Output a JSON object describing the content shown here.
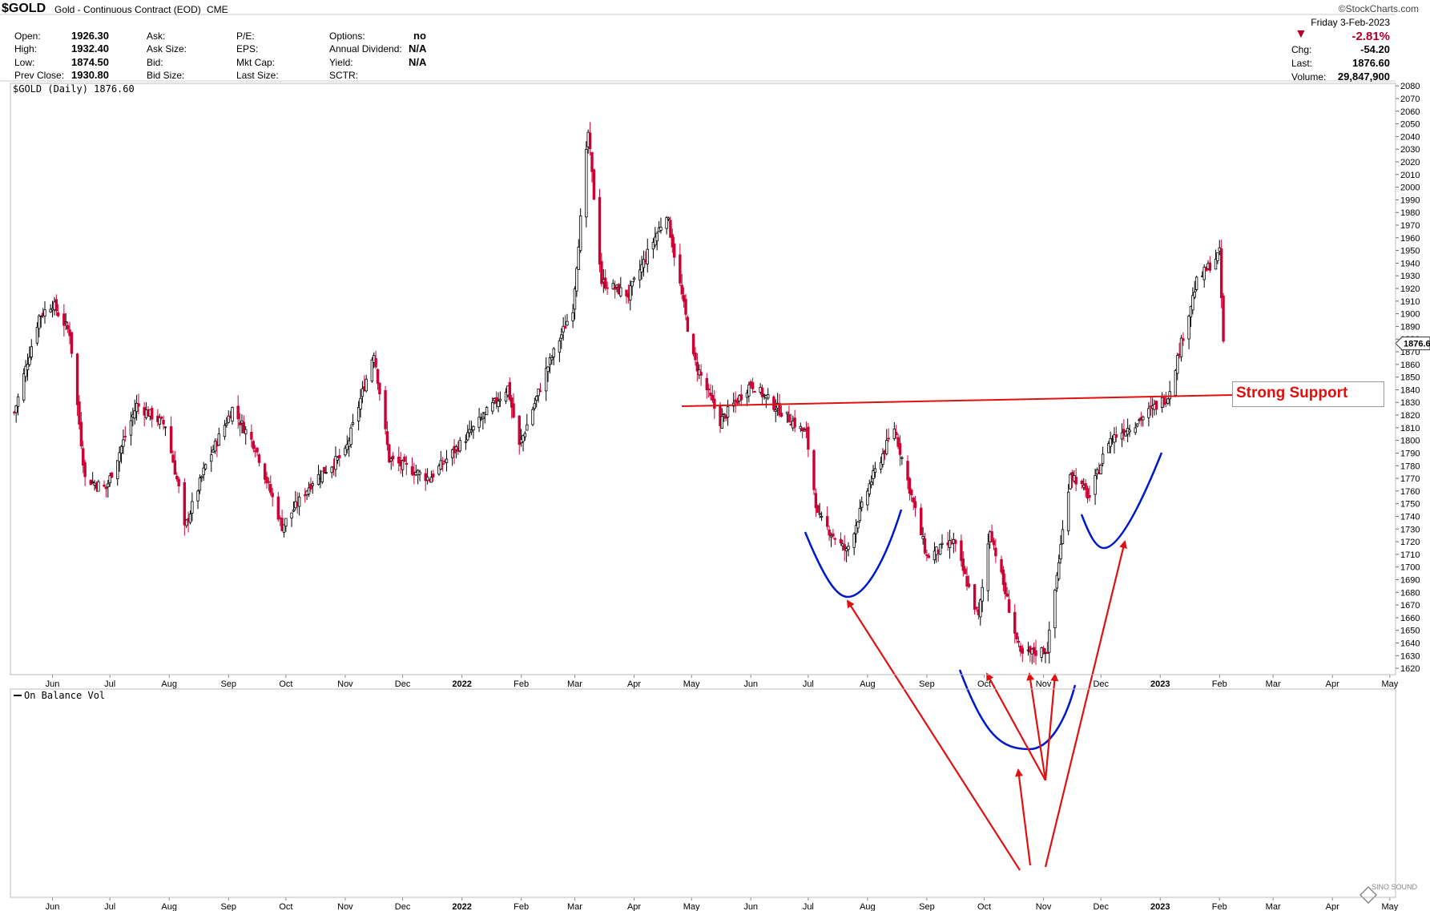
{
  "header": {
    "symbol": "$GOLD",
    "description": "Gold - Continuous Contract (EOD)",
    "exchange": "CME",
    "copyright": "©StockCharts.com",
    "date": "Friday  3-Feb-2023",
    "stats": {
      "open_label": "Open:",
      "open": "1926.30",
      "high_label": "High:",
      "high": "1932.40",
      "low_label": "Low:",
      "low": "1874.50",
      "prev_label": "Prev Close:",
      "prev": "1930.80",
      "ask_label": "Ask:",
      "ask_size_label": "Ask Size:",
      "bid_label": "Bid:",
      "bid_size_label": "Bid Size:",
      "pe_label": "P/E:",
      "eps_label": "EPS:",
      "mktcap_label": "Mkt Cap:",
      "lastsize_label": "Last Size:",
      "options_label": "Options:",
      "options": "no",
      "dividend_label": "Annual Dividend:",
      "dividend": "N/A",
      "yield_label": "Yield:",
      "yield": "N/A",
      "sctr_label": "SCTR:",
      "pct_change": "-2.81%",
      "chg_label": "Chg:",
      "chg": "-54.20",
      "last_label": "Last:",
      "last": "1876.60",
      "volume_label": "Volume:",
      "volume": "29,847,900"
    }
  },
  "colors": {
    "down": "#cc0033",
    "up": "#000000",
    "support_line": "#e01010",
    "bowl": "#0018c8",
    "arrow": "#e01010"
  },
  "chart_data": [
    {
      "type": "candlestick",
      "title": "$GOLD (Daily) 1876.60",
      "ylim": [
        1615,
        2082
      ],
      "y_ticks": [
        1620,
        1630,
        1640,
        1650,
        1660,
        1670,
        1680,
        1690,
        1700,
        1710,
        1720,
        1730,
        1740,
        1750,
        1760,
        1770,
        1780,
        1790,
        1800,
        1810,
        1820,
        1830,
        1840,
        1850,
        1860,
        1870,
        1880,
        1890,
        1900,
        1910,
        1920,
        1930,
        1940,
        1950,
        1960,
        1970,
        1980,
        1990,
        2000,
        2010,
        2020,
        2030,
        2040,
        2050,
        2060,
        2070,
        2080
      ],
      "last_price_label": "1876.60",
      "x_labels": [
        "Jun",
        "Jul",
        "Aug",
        "Sep",
        "Oct",
        "Nov",
        "Dec",
        "2022",
        "Feb",
        "Mar",
        "Apr",
        "May",
        "Jun",
        "Jul",
        "Aug",
        "Sep",
        "Oct",
        "Nov",
        "Dec",
        "2023",
        "Feb",
        "Mar",
        "Apr",
        "May"
      ],
      "close_path": [
        {
          "date": "2021-05-12",
          "close": 1822
        },
        {
          "date": "2021-05-25",
          "close": 1898
        },
        {
          "date": "2021-06-01",
          "close": 1908
        },
        {
          "date": "2021-06-10",
          "close": 1885
        },
        {
          "date": "2021-06-18",
          "close": 1770
        },
        {
          "date": "2021-06-29",
          "close": 1762
        },
        {
          "date": "2021-07-15",
          "close": 1828
        },
        {
          "date": "2021-07-30",
          "close": 1812
        },
        {
          "date": "2021-08-06",
          "close": 1762
        },
        {
          "date": "2021-08-09",
          "close": 1730
        },
        {
          "date": "2021-08-20",
          "close": 1780
        },
        {
          "date": "2021-09-03",
          "close": 1825
        },
        {
          "date": "2021-09-15",
          "close": 1795
        },
        {
          "date": "2021-09-29",
          "close": 1732
        },
        {
          "date": "2021-10-15",
          "close": 1768
        },
        {
          "date": "2021-11-01",
          "close": 1790
        },
        {
          "date": "2021-11-16",
          "close": 1870
        },
        {
          "date": "2021-11-24",
          "close": 1785
        },
        {
          "date": "2021-12-15",
          "close": 1770
        },
        {
          "date": "2022-01-03",
          "close": 1802
        },
        {
          "date": "2022-01-25",
          "close": 1842
        },
        {
          "date": "2022-01-31",
          "close": 1795
        },
        {
          "date": "2022-02-14",
          "close": 1855
        },
        {
          "date": "2022-02-28",
          "close": 1905
        },
        {
          "date": "2022-03-08",
          "close": 2043
        },
        {
          "date": "2022-03-15",
          "close": 1925
        },
        {
          "date": "2022-03-29",
          "close": 1915
        },
        {
          "date": "2022-04-18",
          "close": 1980
        },
        {
          "date": "2022-05-02",
          "close": 1865
        },
        {
          "date": "2022-05-16",
          "close": 1815
        },
        {
          "date": "2022-06-01",
          "close": 1845
        },
        {
          "date": "2022-06-13",
          "close": 1828
        },
        {
          "date": "2022-06-30",
          "close": 1805
        },
        {
          "date": "2022-07-06",
          "close": 1740
        },
        {
          "date": "2022-07-21",
          "close": 1712
        },
        {
          "date": "2022-08-02",
          "close": 1765
        },
        {
          "date": "2022-08-15",
          "close": 1810
        },
        {
          "date": "2022-09-01",
          "close": 1708
        },
        {
          "date": "2022-09-15",
          "close": 1720
        },
        {
          "date": "2022-09-28",
          "close": 1660
        },
        {
          "date": "2022-10-04",
          "close": 1730
        },
        {
          "date": "2022-10-20",
          "close": 1630
        },
        {
          "date": "2022-11-03",
          "close": 1635
        },
        {
          "date": "2022-11-15",
          "close": 1775
        },
        {
          "date": "2022-11-25",
          "close": 1755
        },
        {
          "date": "2022-12-05",
          "close": 1800
        },
        {
          "date": "2022-12-20",
          "close": 1815
        },
        {
          "date": "2023-01-05",
          "close": 1835
        },
        {
          "date": "2023-01-20",
          "close": 1925
        },
        {
          "date": "2023-02-01",
          "close": 1948
        },
        {
          "date": "2023-02-03",
          "close": 1876.6
        }
      ]
    },
    {
      "type": "line",
      "title": "On Balance Vol",
      "series": [],
      "x_labels": [
        "Jun",
        "Jul",
        "Aug",
        "Sep",
        "Oct",
        "Nov",
        "Dec",
        "2022",
        "Feb",
        "Mar",
        "Apr",
        "May",
        "Jun",
        "Jul",
        "Aug",
        "Sep",
        "Oct",
        "Nov",
        "Dec",
        "2023",
        "Feb",
        "Mar",
        "Apr",
        "May"
      ]
    }
  ],
  "annotations": {
    "support_label": "Strong Support"
  },
  "watermark": "SINO SOUND"
}
